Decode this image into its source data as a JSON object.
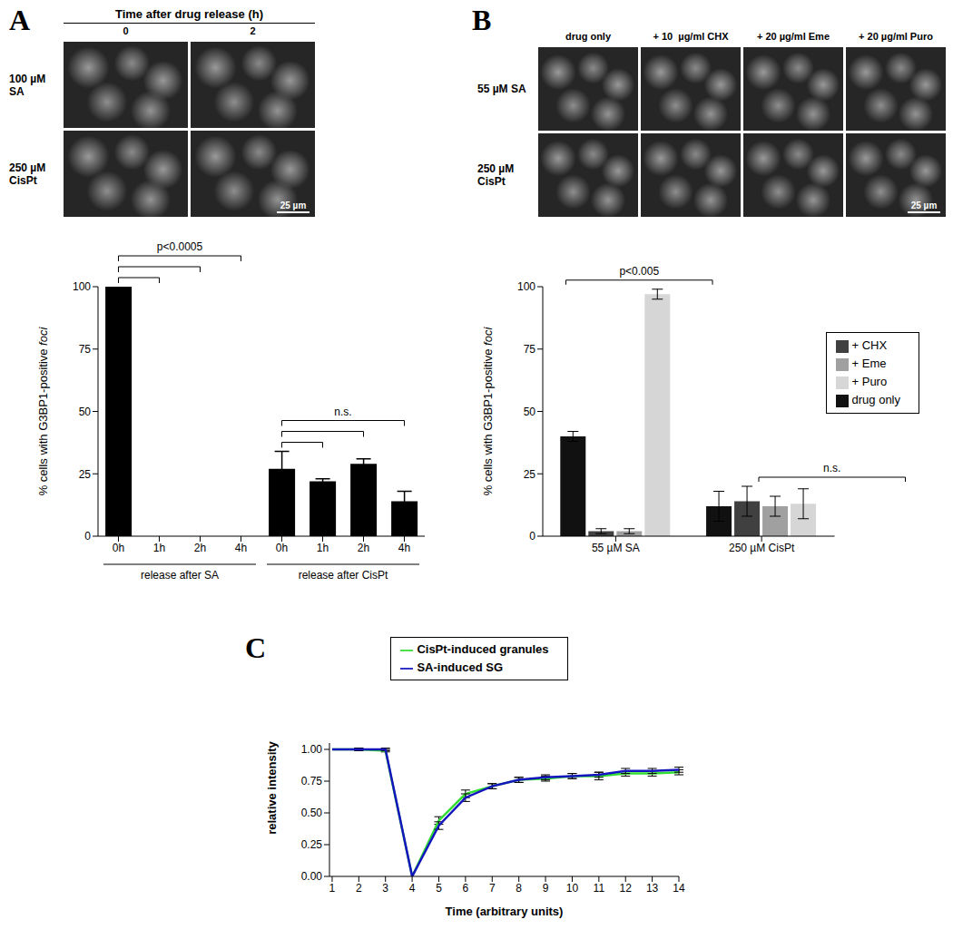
{
  "panel_labels": [
    "A",
    "B",
    "C"
  ],
  "image_panels": [
    {
      "column_header": "Time after drug release (h)",
      "columns": [
        "0",
        "2"
      ],
      "rows": [
        "100 µM SA",
        "250 µM CisPt"
      ],
      "scale_bar": "25 µm"
    },
    {
      "columns": [
        "drug only",
        "+ 10  µg/ml CHX",
        "+ 20 µg/ml Eme",
        "+ 20 µg/ml Puro"
      ],
      "rows": [
        "55 µM SA",
        "250 µM CisPt"
      ],
      "scale_bar": "25 µm"
    }
  ],
  "chart_data": [
    {
      "type": "bar",
      "categories": [
        "0h",
        "1h",
        "2h",
        "4h",
        "0h",
        "1h",
        "2h",
        "4h"
      ],
      "group_labels": [
        "release after SA",
        "release after CisPt"
      ],
      "values": [
        100,
        0,
        0,
        0,
        27,
        22,
        29,
        14
      ],
      "errors": [
        0,
        0,
        0,
        0,
        7,
        1,
        2,
        4
      ],
      "color": "#000000",
      "ylabel": "% cells with G3BP1-positive foci",
      "ylim": [
        0,
        100
      ],
      "yticks": [
        0,
        25,
        50,
        75,
        100
      ],
      "annotations": [
        {
          "text": "p<0.0005",
          "group": "release after SA"
        },
        {
          "text": "n.s.",
          "group": "release after CisPt"
        }
      ]
    },
    {
      "type": "bar",
      "categories": [
        "55 µM SA",
        "250 µM CisPt"
      ],
      "series": [
        {
          "name": "drug only",
          "color": "#111111",
          "values": [
            40,
            12
          ],
          "errors": [
            2,
            6
          ]
        },
        {
          "name": "+ CHX",
          "color": "#404040",
          "values": [
            2,
            14
          ],
          "errors": [
            1,
            6
          ]
        },
        {
          "name": "+ Eme",
          "color": "#a0a0a0",
          "values": [
            2,
            12
          ],
          "errors": [
            1,
            4
          ]
        },
        {
          "name": "+ Puro",
          "color": "#d6d6d6",
          "values": [
            97,
            13
          ],
          "errors": [
            2,
            6
          ]
        }
      ],
      "ylabel": "% cells with G3BP1-positive foci",
      "ylim": [
        0,
        100
      ],
      "yticks": [
        0,
        25,
        50,
        75,
        100
      ],
      "legend": "upper right",
      "annotations": [
        {
          "text": "p<0.005",
          "category": "55 µM SA"
        },
        {
          "text": "n.s.",
          "category": "250 µM CisPt"
        }
      ]
    },
    {
      "type": "line",
      "x": [
        1,
        2,
        3,
        4,
        5,
        6,
        7,
        8,
        9,
        10,
        11,
        12,
        13,
        14
      ],
      "xlim": [
        0.9,
        14
      ],
      "xticks": [
        1,
        2,
        3,
        4,
        5,
        6,
        7,
        8,
        9,
        10,
        11,
        12,
        13,
        14
      ],
      "ylim": [
        0,
        1.05
      ],
      "yticks": [
        {
          "value": 0,
          "label": "0.00"
        },
        {
          "value": 0.25,
          "label": "0.25"
        },
        {
          "value": 0.5,
          "label": "0.50"
        },
        {
          "value": 0.75,
          "label": "0.75"
        },
        {
          "value": 1,
          "label": "1.00"
        }
      ],
      "xlabel": "Time (arbitrary units)",
      "ylabel": "relative intensity",
      "legend": "upper center",
      "series": [
        {
          "name": "CisPt-induced granules",
          "color": "#33dd33",
          "values": [
            1.0,
            1.0,
            0.99,
            0,
            0.44,
            0.65,
            0.71,
            0.76,
            0.77,
            0.79,
            0.79,
            0.81,
            0.81,
            0.82
          ],
          "errors": [
            0,
            0.01,
            0.01,
            0,
            0.03,
            0.03,
            0.02,
            0.02,
            0.02,
            0.02,
            0.03,
            0.02,
            0.02,
            0.02
          ]
        },
        {
          "name": "SA-induced SG",
          "color": "#1515c0",
          "values": [
            1.0,
            1.0,
            1.0,
            0,
            0.4,
            0.62,
            0.71,
            0.76,
            0.78,
            0.79,
            0.8,
            0.83,
            0.83,
            0.84
          ],
          "errors": [
            0,
            0.01,
            0.01,
            0,
            0.03,
            0.03,
            0.02,
            0.02,
            0.02,
            0.02,
            0.02,
            0.02,
            0.02,
            0.02
          ]
        }
      ]
    }
  ]
}
